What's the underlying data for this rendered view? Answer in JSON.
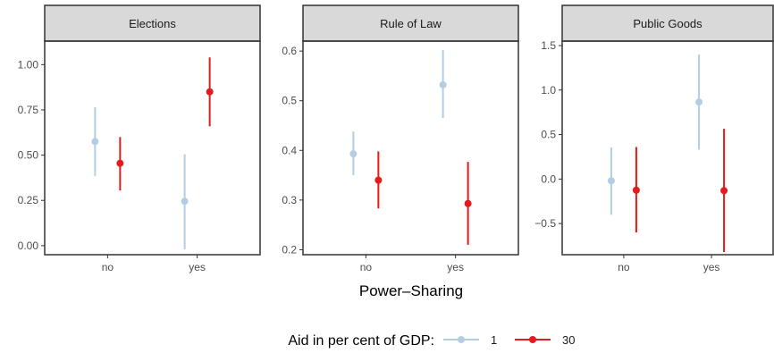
{
  "chart_data": {
    "type": "scatter",
    "xlabel": "Power–Sharing",
    "categories": [
      "no",
      "yes"
    ],
    "legend": {
      "title": "Aid in per cent of GDP:",
      "position": "bottom",
      "entries": [
        {
          "label": "1",
          "color": "#b3cde3"
        },
        {
          "label": "30",
          "color": "#e41a1c"
        }
      ]
    },
    "panels": [
      {
        "title": "Elections",
        "ylim": [
          -0.05,
          1.13
        ],
        "yticks": [
          0.0,
          0.25,
          0.5,
          0.75,
          1.0
        ],
        "ytick_labels": [
          "0.00",
          "0.25",
          "0.50",
          "0.75",
          "1.00"
        ],
        "series": [
          {
            "name": "1",
            "estimates": [
              0.575,
              0.245
            ],
            "lower": [
              0.385,
              -0.02
            ],
            "upper": [
              0.765,
              0.505
            ]
          },
          {
            "name": "30",
            "estimates": [
              0.455,
              0.85
            ],
            "lower": [
              0.305,
              0.66
            ],
            "upper": [
              0.6,
              1.04
            ]
          }
        ]
      },
      {
        "title": "Rule of Law",
        "ylim": [
          0.19,
          0.62
        ],
        "yticks": [
          0.2,
          0.3,
          0.4,
          0.5,
          0.6
        ],
        "ytick_labels": [
          "0.2",
          "0.3",
          "0.4",
          "0.5",
          "0.6"
        ],
        "series": [
          {
            "name": "1",
            "estimates": [
              0.393,
              0.532
            ],
            "lower": [
              0.35,
              0.465
            ],
            "upper": [
              0.438,
              0.602
            ]
          },
          {
            "name": "30",
            "estimates": [
              0.34,
              0.293
            ],
            "lower": [
              0.283,
              0.21
            ],
            "upper": [
              0.398,
              0.377
            ]
          }
        ]
      },
      {
        "title": "Public Goods",
        "ylim": [
          -0.85,
          1.55
        ],
        "yticks": [
          -0.5,
          0.0,
          0.5,
          1.0,
          1.5
        ],
        "ytick_labels": [
          "−0.5",
          "0.0",
          "0.5",
          "1.0",
          "1.5"
        ],
        "series": [
          {
            "name": "1",
            "estimates": [
              -0.02,
              0.865
            ],
            "lower": [
              -0.4,
              0.33
            ],
            "upper": [
              0.355,
              1.4
            ]
          },
          {
            "name": "30",
            "estimates": [
              -0.125,
              -0.13
            ],
            "lower": [
              -0.6,
              -0.82
            ],
            "upper": [
              0.36,
              0.565
            ]
          }
        ]
      }
    ]
  }
}
